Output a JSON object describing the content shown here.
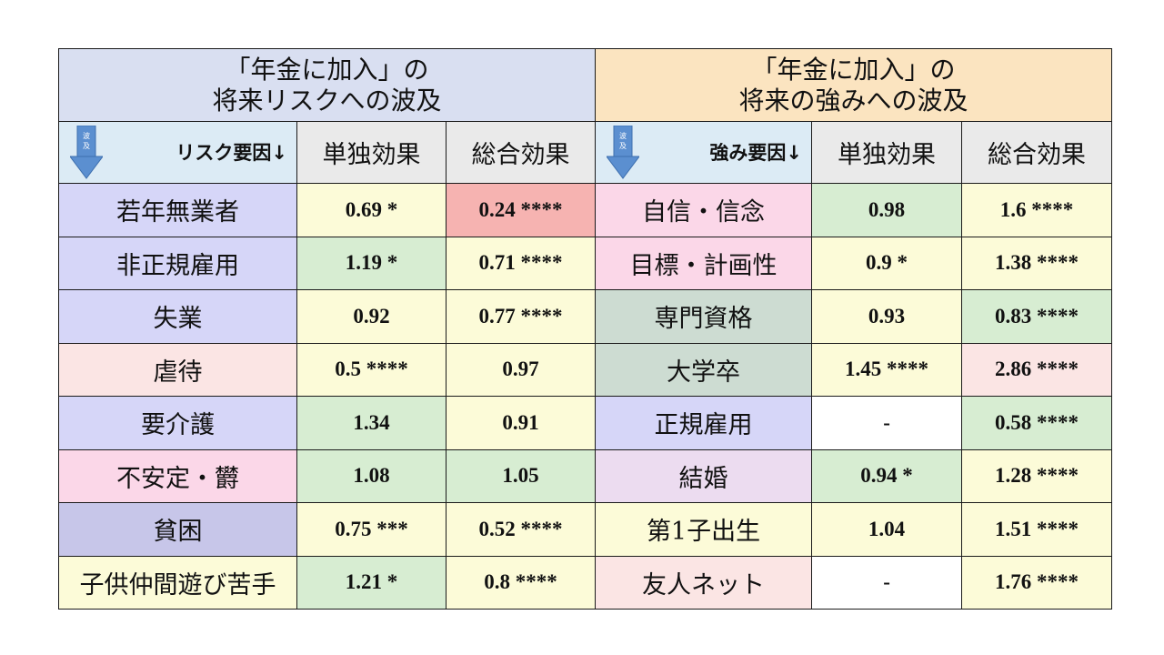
{
  "left_title": {
    "line1": "「年金に加入」の",
    "line2": "将来リスクへの波及"
  },
  "right_title": {
    "line1": "「年金に加入」の",
    "line2": "将来の強みへの波及"
  },
  "headers": {
    "icon_label": "波及",
    "risk_factor": "リスク要因↓",
    "strength_factor": "強み要因↓",
    "single_effect": "単独効果",
    "total_effect": "総合効果"
  },
  "colors": {
    "lavender": "#d6d6f8",
    "pink": "#fbd7e8",
    "peach": "#fbe5e4",
    "purple": "#c7c6e9",
    "cream": "#fcfbd8",
    "green": "#d7edd2",
    "red": "#f6b3b1",
    "sage": "#cddcd2",
    "lilac": "#ecdcf0",
    "white": "#ffffff"
  },
  "rows": [
    {
      "risk": "若年無業者",
      "risk_bg": "#d6d6f8",
      "r_single": "0.69 *",
      "r_single_bg": "#fcfbd8",
      "r_total": "0.24 ****",
      "r_total_bg": "#f6b3b1",
      "strength": "自信・信念",
      "strength_bg": "#fbd7e8",
      "s_single": "0.98",
      "s_single_bg": "#d7edd2",
      "s_total": "1.6 ****",
      "s_total_bg": "#fcfbd8"
    },
    {
      "risk": "非正規雇用",
      "risk_bg": "#d6d6f8",
      "r_single": "1.19 *",
      "r_single_bg": "#d7edd2",
      "r_total": "0.71 ****",
      "r_total_bg": "#fcfbd8",
      "strength": "目標・計画性",
      "strength_bg": "#fbd7e8",
      "s_single": "0.9 *",
      "s_single_bg": "#fcfbd8",
      "s_total": "1.38 ****",
      "s_total_bg": "#fcfbd8"
    },
    {
      "risk": "失業",
      "risk_bg": "#d6d6f8",
      "r_single": "0.92",
      "r_single_bg": "#fcfbd8",
      "r_total": "0.77 ****",
      "r_total_bg": "#fcfbd8",
      "strength": "専門資格",
      "strength_bg": "#cddcd2",
      "s_single": "0.93",
      "s_single_bg": "#fcfbd8",
      "s_total": "0.83 ****",
      "s_total_bg": "#d7edd2"
    },
    {
      "risk": "虐待",
      "risk_bg": "#fbe5e4",
      "r_single": "0.5 ****",
      "r_single_bg": "#fcfbd8",
      "r_total": "0.97",
      "r_total_bg": "#fcfbd8",
      "strength": "大学卒",
      "strength_bg": "#cddcd2",
      "s_single": "1.45 ****",
      "s_single_bg": "#fcfbd8",
      "s_total": "2.86 ****",
      "s_total_bg": "#fbe5e4"
    },
    {
      "risk": "要介護",
      "risk_bg": "#d6d6f8",
      "r_single": "1.34",
      "r_single_bg": "#d7edd2",
      "r_total": "0.91",
      "r_total_bg": "#fcfbd8",
      "strength": "正規雇用",
      "strength_bg": "#d6d6f8",
      "s_single": "-",
      "s_single_bg": "#ffffff",
      "s_total": "0.58 ****",
      "s_total_bg": "#d7edd2"
    },
    {
      "risk": "不安定・欝",
      "risk_bg": "#fbd7e8",
      "r_single": "1.08",
      "r_single_bg": "#d7edd2",
      "r_total": "1.05",
      "r_total_bg": "#d7edd2",
      "strength": "結婚",
      "strength_bg": "#ecdcf0",
      "s_single": "0.94 *",
      "s_single_bg": "#d7edd2",
      "s_total": "1.28 ****",
      "s_total_bg": "#fcfbd8"
    },
    {
      "risk": "貧困",
      "risk_bg": "#c7c6e9",
      "r_single": "0.75 ***",
      "r_single_bg": "#fcfbd8",
      "r_total": "0.52 ****",
      "r_total_bg": "#fcfbd8",
      "strength": "第1子出生",
      "strength_bg": "#fcfbd8",
      "s_single": "1.04",
      "s_single_bg": "#fcfbd8",
      "s_total": "1.51 ****",
      "s_total_bg": "#fcfbd8"
    },
    {
      "risk": "子供仲間遊び苦手",
      "risk_bg": "#fcfbd8",
      "r_single": "1.21 *",
      "r_single_bg": "#d7edd2",
      "r_total": "0.8 ****",
      "r_total_bg": "#fcfbd8",
      "strength": "友人ネット",
      "strength_bg": "#fbe5e4",
      "s_single": "-",
      "s_single_bg": "#ffffff",
      "s_total": "1.76 ****",
      "s_total_bg": "#fcfbd8"
    }
  ]
}
